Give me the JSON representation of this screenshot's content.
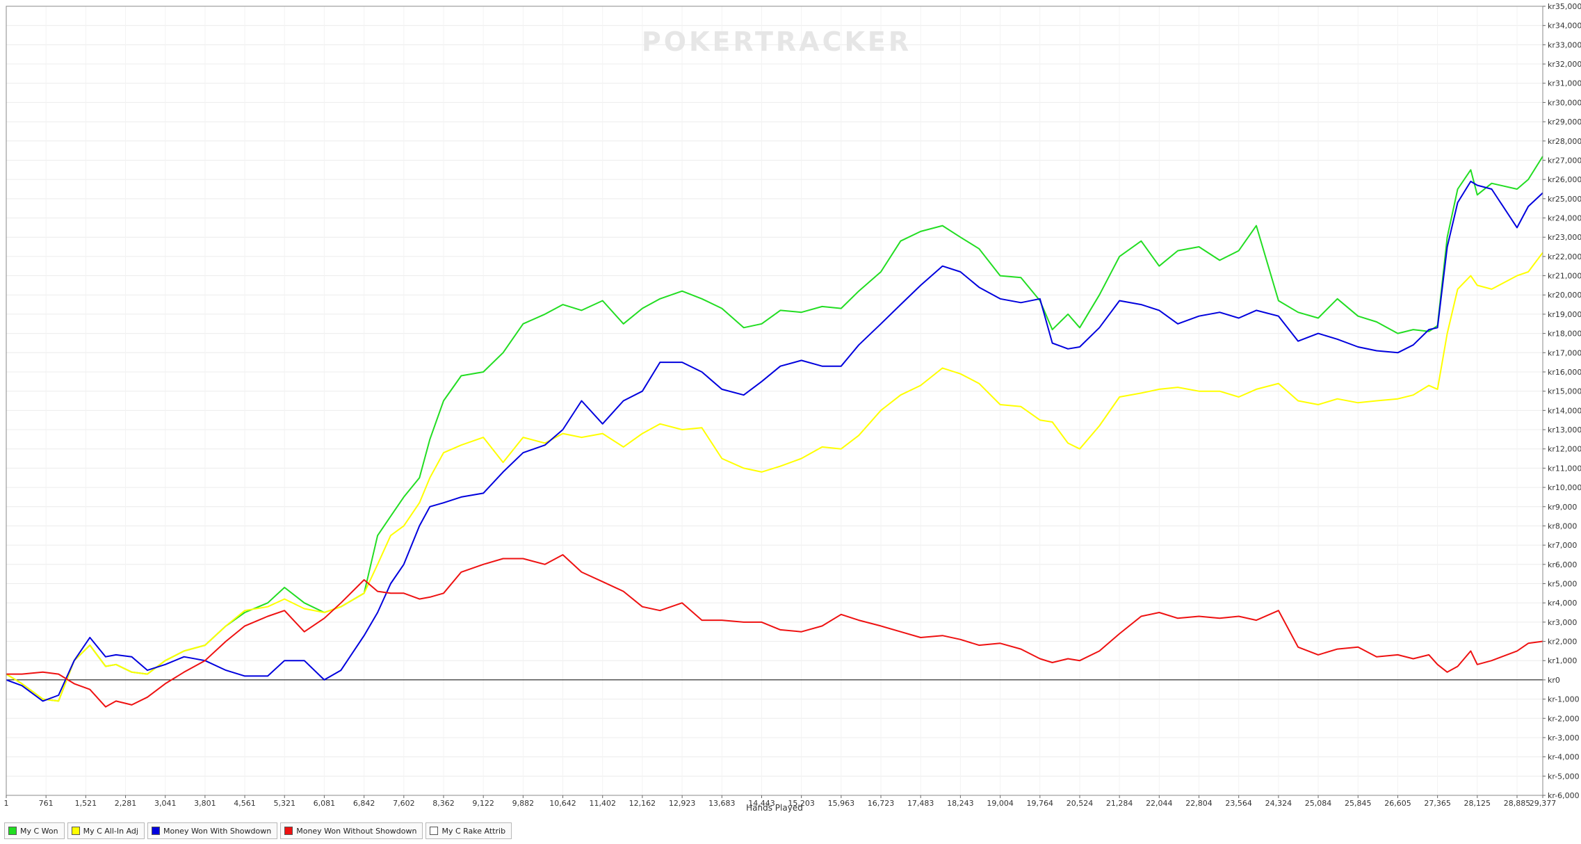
{
  "chart_data": {
    "type": "line",
    "title": "",
    "xlabel": "Hands Played",
    "ylabel": "",
    "watermark": "POKERTRACKER",
    "xlim": [
      1,
      29377
    ],
    "ylim": [
      -6000,
      35000
    ],
    "y_ticks": [
      -6000,
      -5000,
      -4000,
      -3000,
      -2000,
      -1000,
      0,
      1000,
      2000,
      3000,
      4000,
      5000,
      6000,
      7000,
      8000,
      9000,
      10000,
      11000,
      12000,
      13000,
      14000,
      15000,
      16000,
      17000,
      18000,
      19000,
      20000,
      21000,
      22000,
      23000,
      24000,
      25000,
      26000,
      27000,
      28000,
      29000,
      30000,
      31000,
      32000,
      33000,
      34000,
      35000
    ],
    "y_tick_labels": [
      "kr-6,000",
      "kr-5,000",
      "kr-4,000",
      "kr-3,000",
      "kr-2,000",
      "kr-1,000",
      "kr0",
      "kr1,000",
      "kr2,000",
      "kr3,000",
      "kr4,000",
      "kr5,000",
      "kr6,000",
      "kr7,000",
      "kr8,000",
      "kr9,000",
      "kr10,000",
      "kr11,000",
      "kr12,000",
      "kr13,000",
      "kr14,000",
      "kr15,000",
      "kr16,000",
      "kr17,000",
      "kr18,000",
      "kr19,000",
      "kr20,000",
      "kr21,000",
      "kr22,000",
      "kr23,000",
      "kr24,000",
      "kr25,000",
      "kr26,000",
      "kr27,000",
      "kr28,000",
      "kr29,000",
      "kr30,000",
      "kr31,000",
      "kr32,000",
      "kr33,000",
      "kr34,000",
      "kr35,000"
    ],
    "x_ticks": [
      1,
      761,
      1521,
      2281,
      3041,
      3801,
      4561,
      5321,
      6081,
      6842,
      7602,
      8362,
      9122,
      9882,
      10642,
      11402,
      12162,
      12923,
      13683,
      14443,
      15203,
      15963,
      16723,
      17483,
      18243,
      19004,
      19764,
      20524,
      21284,
      22044,
      22804,
      23564,
      24324,
      25084,
      25845,
      26605,
      27365,
      28125,
      28885,
      29377
    ],
    "x_tick_labels": [
      "1",
      "761",
      "1,521",
      "2,281",
      "3,041",
      "3,801",
      "4,561",
      "5,321",
      "6,081",
      "6,842",
      "7,602",
      "8,362",
      "9,122",
      "9,882",
      "10,642",
      "11,402",
      "12,162",
      "12,923",
      "13,683",
      "14,443",
      "15,203",
      "15,963",
      "16,723",
      "17,483",
      "18,243",
      "19,004",
      "19,764",
      "20,524",
      "21,284",
      "22,044",
      "22,804",
      "23,564",
      "24,324",
      "25,084",
      "25,845",
      "26,605",
      "27,365",
      "28,125",
      "28,885",
      "29,377"
    ],
    "grid": true,
    "legend_position": "bottom-left",
    "series": [
      {
        "name": "My C Won",
        "color": "#22dd22",
        "x": [
          1,
          300,
          700,
          1000,
          1300,
          1600,
          1900,
          2100,
          2400,
          2700,
          3041,
          3400,
          3801,
          4200,
          4561,
          5000,
          5321,
          5700,
          6081,
          6400,
          6842,
          7100,
          7350,
          7602,
          7900,
          8100,
          8362,
          8700,
          9122,
          9500,
          9882,
          10300,
          10642,
          11000,
          11402,
          11800,
          12162,
          12500,
          12923,
          13300,
          13683,
          14100,
          14443,
          14800,
          15203,
          15600,
          15963,
          16300,
          16723,
          17100,
          17483,
          17900,
          18243,
          18600,
          19004,
          19400,
          19764,
          20000,
          20300,
          20524,
          20900,
          21284,
          21700,
          22044,
          22400,
          22804,
          23200,
          23564,
          23900,
          24324,
          24700,
          25084,
          25450,
          25845,
          26200,
          26605,
          26900,
          27200,
          27365,
          27550,
          27750,
          28000,
          28125,
          28400,
          28885,
          29100,
          29377
        ],
        "y": [
          300,
          -200,
          -1000,
          -1100,
          1000,
          1800,
          700,
          800,
          400,
          300,
          1000,
          1500,
          1800,
          2800,
          3500,
          4000,
          4800,
          4000,
          3500,
          3800,
          4500,
          7500,
          8500,
          9500,
          10500,
          12500,
          14500,
          15800,
          16000,
          17000,
          18500,
          19000,
          19500,
          19200,
          19700,
          18500,
          19300,
          19800,
          20200,
          19800,
          19300,
          18300,
          18500,
          19200,
          19100,
          19400,
          19300,
          20200,
          21200,
          22800,
          23300,
          23600,
          23000,
          22400,
          21000,
          20900,
          19700,
          18200,
          19000,
          18300,
          20000,
          22000,
          22800,
          21500,
          22300,
          22500,
          21800,
          22300,
          23600,
          19700,
          19100,
          18800,
          19800,
          18900,
          18600,
          18000,
          18200,
          18100,
          18400,
          23000,
          25500,
          26500,
          25200,
          25800,
          25500,
          26000,
          27200
        ]
      },
      {
        "name": "My C All-In Adj",
        "color": "#ffff00",
        "x": [
          1,
          300,
          700,
          1000,
          1300,
          1600,
          1900,
          2100,
          2400,
          2700,
          3041,
          3400,
          3801,
          4200,
          4561,
          5000,
          5321,
          5700,
          6081,
          6400,
          6842,
          7100,
          7350,
          7602,
          7900,
          8100,
          8362,
          8700,
          9122,
          9500,
          9882,
          10300,
          10642,
          11000,
          11402,
          11800,
          12162,
          12500,
          12923,
          13300,
          13683,
          14100,
          14443,
          14800,
          15203,
          15600,
          15963,
          16300,
          16723,
          17100,
          17483,
          17900,
          18243,
          18600,
          19004,
          19400,
          19764,
          20000,
          20300,
          20524,
          20900,
          21284,
          21700,
          22044,
          22400,
          22804,
          23200,
          23564,
          23900,
          24324,
          24700,
          25084,
          25450,
          25845,
          26200,
          26605,
          26900,
          27200,
          27365,
          27550,
          27750,
          28000,
          28125,
          28400,
          28885,
          29100,
          29377
        ],
        "y": [
          300,
          -200,
          -1000,
          -1100,
          1000,
          1800,
          700,
          800,
          400,
          300,
          1000,
          1500,
          1800,
          2800,
          3600,
          3800,
          4200,
          3700,
          3500,
          3800,
          4500,
          6000,
          7500,
          8000,
          9200,
          10500,
          11800,
          12200,
          12600,
          11300,
          12600,
          12300,
          12800,
          12600,
          12800,
          12100,
          12800,
          13300,
          13000,
          13100,
          11500,
          11000,
          10800,
          11100,
          11500,
          12100,
          12000,
          12700,
          14000,
          14800,
          15300,
          16200,
          15900,
          15400,
          14300,
          14200,
          13500,
          13400,
          12300,
          12000,
          13200,
          14700,
          14900,
          15100,
          15200,
          15000,
          15000,
          14700,
          15100,
          15400,
          14500,
          14300,
          14600,
          14400,
          14500,
          14600,
          14800,
          15300,
          15100,
          18000,
          20300,
          21000,
          20500,
          20300,
          21000,
          21200,
          22200
        ]
      },
      {
        "name": "Money Won With Showdown",
        "color": "#0000dd",
        "x": [
          1,
          300,
          700,
          1000,
          1300,
          1600,
          1900,
          2100,
          2400,
          2700,
          3041,
          3400,
          3801,
          4200,
          4561,
          5000,
          5321,
          5700,
          6081,
          6400,
          6842,
          7100,
          7350,
          7602,
          7900,
          8100,
          8362,
          8700,
          9122,
          9500,
          9882,
          10300,
          10642,
          11000,
          11402,
          11800,
          12162,
          12500,
          12923,
          13300,
          13683,
          14100,
          14443,
          14800,
          15203,
          15600,
          15963,
          16300,
          16723,
          17100,
          17483,
          17900,
          18243,
          18600,
          19004,
          19400,
          19764,
          20000,
          20300,
          20524,
          20900,
          21284,
          21700,
          22044,
          22400,
          22804,
          23200,
          23564,
          23900,
          24324,
          24700,
          25084,
          25450,
          25845,
          26200,
          26605,
          26900,
          27200,
          27365,
          27550,
          27750,
          28000,
          28125,
          28400,
          28885,
          29100,
          29377
        ],
        "y": [
          0,
          -300,
          -1100,
          -800,
          1000,
          2200,
          1200,
          1300,
          1200,
          500,
          800,
          1200,
          1000,
          500,
          200,
          200,
          1000,
          1000,
          0,
          500,
          2300,
          3500,
          5000,
          6000,
          8000,
          9000,
          9200,
          9500,
          9700,
          10800,
          11800,
          12200,
          13000,
          14500,
          13300,
          14500,
          15000,
          16500,
          16500,
          16000,
          15100,
          14800,
          15500,
          16300,
          16600,
          16300,
          16300,
          17400,
          18500,
          19500,
          20500,
          21500,
          21200,
          20400,
          19800,
          19600,
          19800,
          17500,
          17200,
          17300,
          18300,
          19700,
          19500,
          19200,
          18500,
          18900,
          19100,
          18800,
          19200,
          18900,
          17600,
          18000,
          17700,
          17300,
          17100,
          17000,
          17400,
          18200,
          18300,
          22500,
          24800,
          25900,
          25700,
          25500,
          23500,
          24600,
          25300
        ]
      },
      {
        "name": "Money Won Without Showdown",
        "color": "#ee1111",
        "x": [
          1,
          300,
          700,
          1000,
          1300,
          1600,
          1900,
          2100,
          2400,
          2700,
          3041,
          3400,
          3801,
          4200,
          4561,
          5000,
          5321,
          5700,
          6081,
          6400,
          6842,
          7100,
          7350,
          7602,
          7900,
          8100,
          8362,
          8700,
          9122,
          9500,
          9882,
          10300,
          10642,
          11000,
          11402,
          11800,
          12162,
          12500,
          12923,
          13300,
          13683,
          14100,
          14443,
          14800,
          15203,
          15600,
          15963,
          16300,
          16723,
          17100,
          17483,
          17900,
          18243,
          18600,
          19004,
          19400,
          19764,
          20000,
          20300,
          20524,
          20900,
          21284,
          21700,
          22044,
          22400,
          22804,
          23200,
          23564,
          23900,
          24324,
          24700,
          25084,
          25450,
          25845,
          26200,
          26605,
          26900,
          27200,
          27365,
          27550,
          27750,
          28000,
          28125,
          28400,
          28885,
          29100,
          29377
        ],
        "y": [
          300,
          300,
          400,
          300,
          -200,
          -500,
          -1400,
          -1100,
          -1300,
          -900,
          -200,
          400,
          1000,
          2000,
          2800,
          3300,
          3600,
          2500,
          3200,
          4000,
          5200,
          4600,
          4500,
          4500,
          4200,
          4300,
          4500,
          5600,
          6000,
          6300,
          6300,
          6000,
          6500,
          5600,
          5100,
          4600,
          3800,
          3600,
          4000,
          3100,
          3100,
          3000,
          3000,
          2600,
          2500,
          2800,
          3400,
          3100,
          2800,
          2500,
          2200,
          2300,
          2100,
          1800,
          1900,
          1600,
          1100,
          900,
          1100,
          1000,
          1500,
          2400,
          3300,
          3500,
          3200,
          3300,
          3200,
          3300,
          3100,
          3600,
          1700,
          1300,
          1600,
          1700,
          1200,
          1300,
          1100,
          1300,
          800,
          400,
          700,
          1500,
          800,
          1000,
          1500,
          1900,
          2000
        ]
      },
      {
        "name": "My C Rake Attrib",
        "color": "#ffffff",
        "x": [],
        "y": []
      }
    ]
  }
}
